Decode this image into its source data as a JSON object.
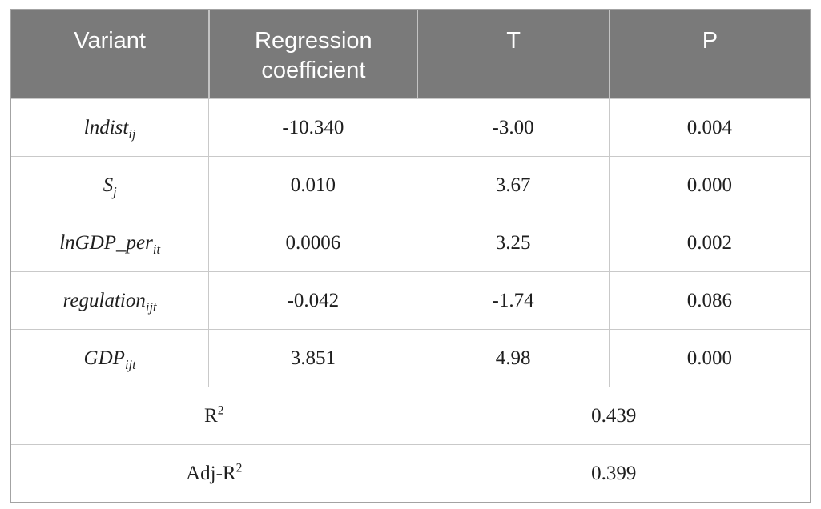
{
  "table": {
    "header": {
      "variant": "Variant",
      "coefficient": "Regression coefficient",
      "t": "T",
      "p": "P"
    },
    "rows": [
      {
        "variant_base": "lndist",
        "variant_sub": "ij",
        "coefficient": "-10.340",
        "t": "-3.00",
        "p": "0.004"
      },
      {
        "variant_base": "S",
        "variant_sub": "j",
        "coefficient": "0.010",
        "t": "3.67",
        "p": "0.000"
      },
      {
        "variant_base": "lnGDP_per",
        "variant_sub": "it",
        "coefficient": "0.0006",
        "t": "3.25",
        "p": "0.002"
      },
      {
        "variant_base": "regulation",
        "variant_sub": "ijt",
        "coefficient": "-0.042",
        "t": "-1.74",
        "p": "0.086"
      },
      {
        "variant_base": "GDP",
        "variant_sub": "ijt",
        "coefficient": "3.851",
        "t": "4.98",
        "p": "0.000"
      }
    ],
    "summary": [
      {
        "label_base": "R",
        "label_sup": "2",
        "value": "0.439"
      },
      {
        "label_base": "Adj-R",
        "label_sup": "2",
        "value": "0.399"
      }
    ]
  },
  "chart_data": {
    "type": "table",
    "columns": [
      "Variant",
      "Regression coefficient",
      "T",
      "P"
    ],
    "rows": [
      [
        "lndist_ij",
        "-10.340",
        "-3.00",
        "0.004"
      ],
      [
        "S_j",
        "0.010",
        "3.67",
        "0.000"
      ],
      [
        "lnGDP_per_it",
        "0.0006",
        "3.25",
        "0.002"
      ],
      [
        "regulation_ijt",
        "-0.042",
        "-1.74",
        "0.086"
      ],
      [
        "GDP_ijt",
        "3.851",
        "4.98",
        "0.000"
      ],
      [
        "R^2",
        "0.439"
      ],
      [
        "Adj-R^2",
        "0.399"
      ]
    ]
  },
  "colors": {
    "header_background": "#7a7a7a",
    "header_text": "#ffffff",
    "body_text": "#1f1f1f",
    "grid_line": "#c9c9c9",
    "outer_border": "#a3a3a3"
  }
}
